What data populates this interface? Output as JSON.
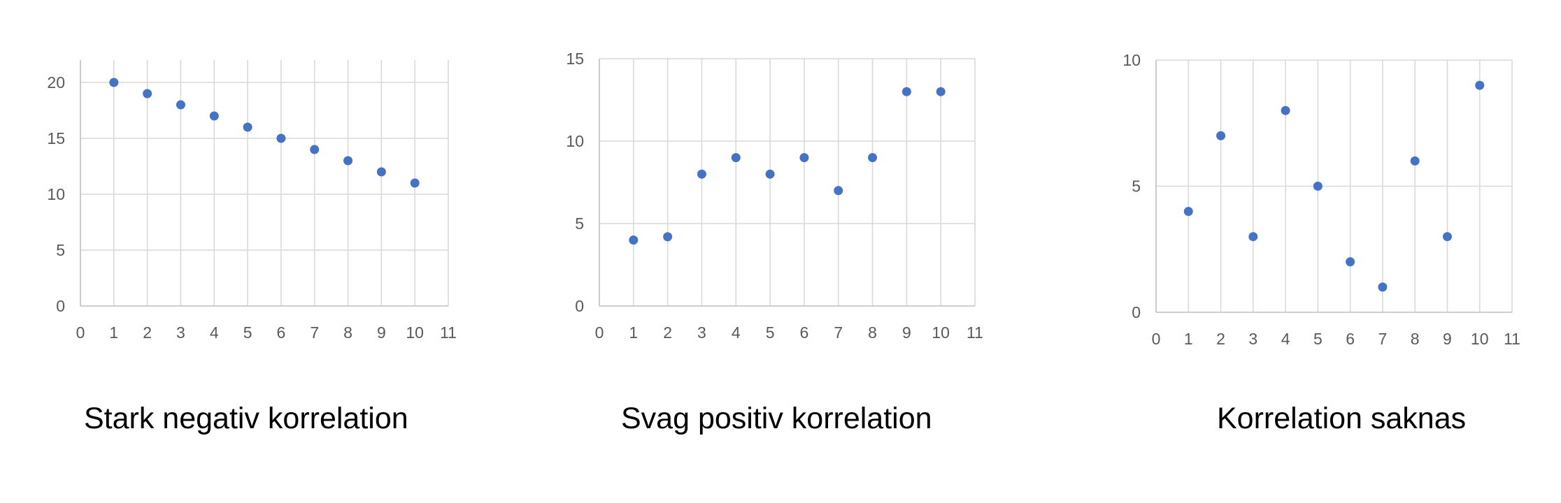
{
  "marker_color": "#4472C4",
  "chart_data": [
    {
      "type": "scatter",
      "title": "",
      "caption": "Stark negativ korrelation",
      "xlabel": "",
      "ylabel": "",
      "xlim": [
        0,
        11
      ],
      "ylim": [
        0,
        22
      ],
      "x_ticks": [
        0,
        1,
        2,
        3,
        4,
        5,
        6,
        7,
        8,
        9,
        10,
        11
      ],
      "y_ticks": [
        0,
        5,
        10,
        15,
        20
      ],
      "grid": true,
      "series": [
        {
          "x": [
            1,
            2,
            3,
            4,
            5,
            6,
            7,
            8,
            9,
            10
          ],
          "y": [
            20,
            19,
            18,
            17,
            16,
            15,
            14,
            13,
            12,
            11
          ]
        }
      ]
    },
    {
      "type": "scatter",
      "title": "",
      "caption": "Svag positiv korrelation",
      "xlabel": "",
      "ylabel": "",
      "xlim": [
        0,
        11
      ],
      "ylim": [
        0,
        15
      ],
      "x_ticks": [
        0,
        1,
        2,
        3,
        4,
        5,
        6,
        7,
        8,
        9,
        10,
        11
      ],
      "y_ticks": [
        0,
        5,
        10,
        15
      ],
      "grid": true,
      "series": [
        {
          "x": [
            1,
            2,
            3,
            4,
            5,
            6,
            7,
            8,
            9,
            10
          ],
          "y": [
            4,
            4.2,
            8,
            9,
            8,
            9,
            7,
            9,
            13,
            13
          ]
        }
      ]
    },
    {
      "type": "scatter",
      "title": "",
      "caption": "Korrelation saknas",
      "xlabel": "",
      "ylabel": "",
      "xlim": [
        0,
        11
      ],
      "ylim": [
        0,
        10
      ],
      "x_ticks": [
        0,
        1,
        2,
        3,
        4,
        5,
        6,
        7,
        8,
        9,
        10,
        11
      ],
      "y_ticks": [
        0,
        5,
        10
      ],
      "grid": true,
      "series": [
        {
          "x": [
            1,
            2,
            3,
            4,
            5,
            6,
            7,
            8,
            9,
            10
          ],
          "y": [
            4,
            7,
            3,
            8,
            5,
            2,
            1,
            6,
            3,
            9
          ]
        }
      ]
    }
  ]
}
